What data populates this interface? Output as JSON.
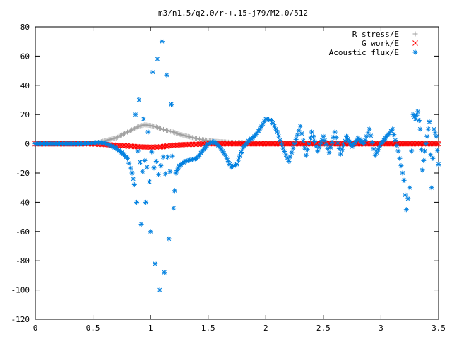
{
  "chart_data": {
    "type": "scatter",
    "title": "m3/n1.5/q2.0/r-+.15-j79/M2.0/512",
    "xlabel": "",
    "ylabel": "",
    "xlim": [
      0,
      3.5
    ],
    "ylim": [
      -120,
      80
    ],
    "xticks": [
      "0",
      "0.5",
      "1",
      "1.5",
      "2",
      "2.5",
      "3",
      "3.5"
    ],
    "yticks": [
      "80",
      "60",
      "40",
      "20",
      "0",
      "-20",
      "-40",
      "-60",
      "-80",
      "-100",
      "-120"
    ],
    "grid": false,
    "legend_position": "top-right",
    "series": [
      {
        "name": "R stress/E",
        "marker": "+",
        "color": "#a0a0a0",
        "x": [
          0,
          0.2,
          0.4,
          0.5,
          0.55,
          0.6,
          0.65,
          0.7,
          0.75,
          0.8,
          0.85,
          0.9,
          0.95,
          1.0,
          1.05,
          1.1,
          1.15,
          1.2,
          1.25,
          1.3,
          1.35,
          1.4,
          1.45,
          1.5,
          1.55,
          1.6,
          1.7,
          1.8,
          1.9,
          2.0,
          2.2,
          2.4,
          2.6,
          2.8,
          3.0,
          3.2,
          3.5
        ],
        "y": [
          0,
          0,
          0,
          0.5,
          1,
          2,
          3,
          4,
          6,
          8,
          10,
          12,
          13,
          12.5,
          11.5,
          10,
          9,
          8,
          6.5,
          5.5,
          4.5,
          3.5,
          2.8,
          2.3,
          1.8,
          1.5,
          1,
          0.8,
          0.6,
          0.5,
          0.4,
          0.3,
          0.3,
          0.3,
          0.2,
          0.2,
          0.2
        ]
      },
      {
        "name": "G work/E",
        "marker": "x",
        "color": "#ff0000",
        "x": [
          0,
          0.2,
          0.4,
          0.5,
          0.6,
          0.7,
          0.8,
          0.85,
          0.9,
          0.95,
          1.0,
          1.05,
          1.1,
          1.15,
          1.2,
          1.3,
          1.4,
          1.5,
          1.6,
          1.8,
          2.0,
          2.2,
          2.4,
          2.6,
          2.8,
          3.0,
          3.2,
          3.5
        ],
        "y": [
          0,
          0,
          0,
          0,
          -0.5,
          -1,
          -1.5,
          -1.8,
          -2,
          -2.2,
          -2.3,
          -2.2,
          -2,
          -1.5,
          -1,
          -0.5,
          -0.3,
          0,
          0,
          0,
          0,
          0,
          0,
          0,
          0,
          0,
          0,
          0
        ]
      },
      {
        "name": "Acoustic flux/E",
        "marker": "*",
        "color": "#0080e0",
        "x": [
          0,
          0.2,
          0.4,
          0.5,
          0.55,
          0.6,
          0.65,
          0.7,
          0.75,
          0.8,
          0.84,
          0.86,
          0.87,
          0.88,
          0.9,
          0.92,
          0.94,
          0.96,
          0.98,
          1.0,
          1.02,
          1.04,
          1.06,
          1.08,
          1.1,
          1.12,
          1.14,
          1.16,
          1.18,
          1.2,
          1.22,
          1.25,
          1.3,
          1.35,
          1.4,
          1.45,
          1.5,
          1.55,
          1.6,
          1.65,
          1.7,
          1.75,
          1.8,
          1.85,
          1.9,
          1.95,
          2.0,
          2.05,
          2.1,
          2.15,
          2.2,
          2.25,
          2.3,
          2.35,
          2.4,
          2.45,
          2.5,
          2.55,
          2.6,
          2.65,
          2.7,
          2.75,
          2.8,
          2.85,
          2.9,
          2.95,
          3.0,
          3.05,
          3.1,
          3.15,
          3.2,
          3.22,
          3.25,
          3.28,
          3.3,
          3.32,
          3.34,
          3.36,
          3.38,
          3.4,
          3.42,
          3.44,
          3.46,
          3.48,
          3.5
        ],
        "y": [
          0,
          0,
          0,
          0.5,
          1,
          0.5,
          -1,
          -3,
          -6,
          -10,
          -20,
          -28,
          20,
          -40,
          30,
          -55,
          17,
          -40,
          8,
          -60,
          49,
          -82,
          58,
          -100,
          70,
          -88,
          47,
          -65,
          27,
          -44,
          -20,
          -15,
          -12,
          -11,
          -10,
          -5,
          0,
          1.5,
          -2,
          -8,
          -16,
          -14,
          -3,
          2,
          5,
          10,
          17,
          16,
          8,
          -3,
          -12,
          0,
          12,
          -8,
          8,
          -5,
          5,
          -6,
          8,
          -7,
          5,
          -2,
          4,
          0,
          10,
          -8,
          0,
          5,
          10,
          -5,
          -25,
          -45,
          -30,
          20,
          17,
          22,
          10,
          -18,
          -5,
          5,
          15,
          -30,
          10,
          5,
          -14
        ]
      }
    ]
  }
}
